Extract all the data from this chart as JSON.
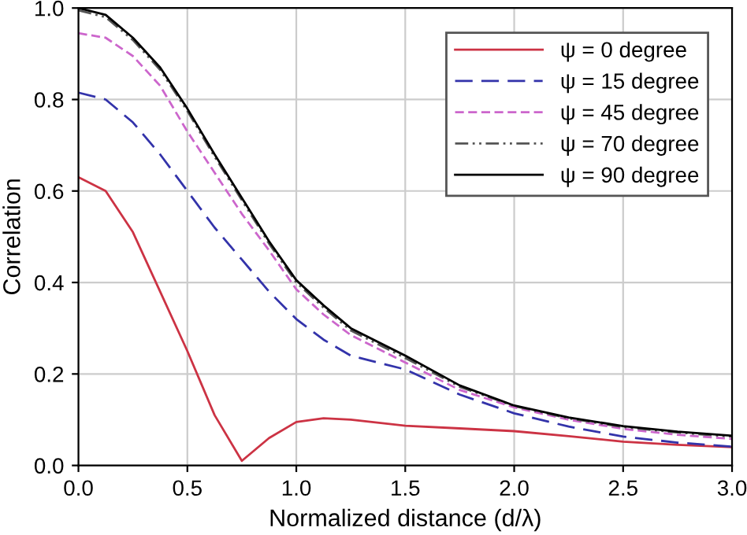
{
  "chart_data": {
    "type": "line",
    "xlabel": "Normalized distance (d/λ)",
    "ylabel": "Correlation",
    "x": [
      0,
      0.125,
      0.25,
      0.375,
      0.5,
      0.625,
      0.75,
      0.875,
      1.0,
      1.125,
      1.25,
      1.5,
      1.75,
      2.0,
      2.25,
      2.5,
      2.75,
      3.0
    ],
    "xlim": [
      0,
      3
    ],
    "xticks": [
      {
        "value": 0,
        "label": "0.0"
      },
      {
        "value": 0.5,
        "label": "0.5"
      },
      {
        "value": 1,
        "label": "1.0"
      },
      {
        "value": 1.5,
        "label": "1.5"
      },
      {
        "value": 2,
        "label": "2.0"
      },
      {
        "value": 2.5,
        "label": "2.5"
      },
      {
        "value": 3,
        "label": "3.0"
      }
    ],
    "ylim": [
      0,
      1
    ],
    "yticks": [
      {
        "value": 0,
        "label": "0.0"
      },
      {
        "value": 0.2,
        "label": "0.2"
      },
      {
        "value": 0.4,
        "label": "0.4"
      },
      {
        "value": 0.6,
        "label": "0.6"
      },
      {
        "value": 0.8,
        "label": "0.8"
      },
      {
        "value": 1,
        "label": "1.0"
      }
    ],
    "grid": true,
    "legend": "top right",
    "series": [
      {
        "name": "ψ = 0 degree",
        "color": "#cc3344",
        "line_style": "solid",
        "values": [
          0.63,
          0.6,
          0.51,
          0.38,
          0.25,
          0.11,
          0.01,
          0.06,
          0.095,
          0.103,
          0.1,
          0.087,
          0.081,
          0.075,
          0.064,
          0.052,
          0.045,
          0.04
        ]
      },
      {
        "name": "ψ = 15 degree",
        "color": "#3333aa",
        "line_style": "dashed",
        "values": [
          0.815,
          0.8,
          0.75,
          0.68,
          0.6,
          0.52,
          0.45,
          0.38,
          0.32,
          0.275,
          0.24,
          0.21,
          0.155,
          0.114,
          0.085,
          0.063,
          0.05,
          0.041
        ]
      },
      {
        "name": "ψ = 45 degree",
        "color": "#cc66cc",
        "line_style": "dashed",
        "values": [
          0.945,
          0.935,
          0.895,
          0.83,
          0.73,
          0.64,
          0.55,
          0.47,
          0.385,
          0.33,
          0.285,
          0.225,
          0.165,
          0.127,
          0.1,
          0.08,
          0.067,
          0.058
        ]
      },
      {
        "name": "ψ = 70 degree",
        "color": "#555555",
        "line_style": "dashdot",
        "values": [
          0.995,
          0.98,
          0.93,
          0.865,
          0.775,
          0.675,
          0.58,
          0.485,
          0.4,
          0.345,
          0.295,
          0.235,
          0.172,
          0.13,
          0.103,
          0.084,
          0.072,
          0.063
        ]
      },
      {
        "name": "ψ = 90 degree",
        "color": "#000000",
        "line_style": "solid",
        "values": [
          1.0,
          0.985,
          0.935,
          0.87,
          0.78,
          0.68,
          0.585,
          0.49,
          0.405,
          0.35,
          0.3,
          0.24,
          0.175,
          0.131,
          0.105,
          0.086,
          0.074,
          0.065
        ]
      }
    ]
  }
}
